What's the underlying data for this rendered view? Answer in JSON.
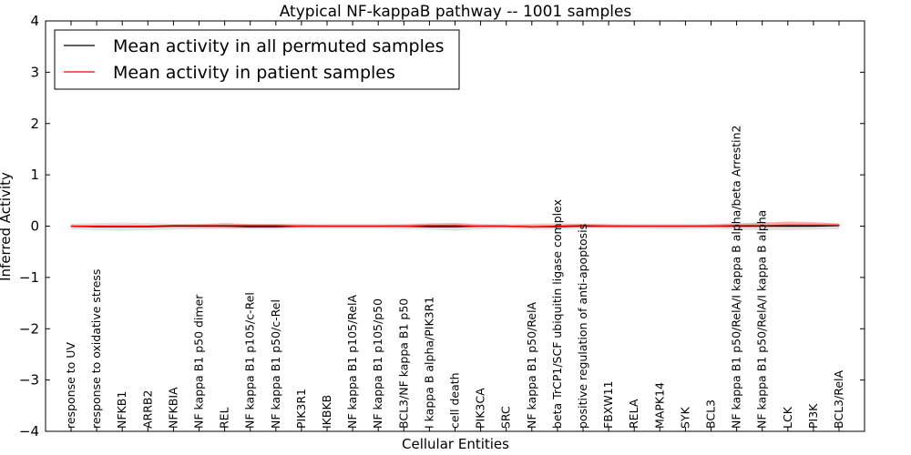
{
  "chart_data": {
    "type": "line",
    "title": "Atypical NF-kappaB pathway -- 1001 samples",
    "xlabel": "Cellular Entities",
    "ylabel": "Inferred Activity",
    "ylim": [
      -4,
      4
    ],
    "yticks": [
      4,
      3,
      2,
      1,
      0,
      -1,
      -2,
      -3,
      -4
    ],
    "ytick_labels": [
      "4",
      "3",
      "2",
      "1",
      "0",
      "−1",
      "−2",
      "−3",
      "−4"
    ],
    "grid": false,
    "legend": {
      "placement": "upper-left",
      "entries": [
        {
          "label": "Mean activity in all permuted samples",
          "color": "#000000"
        },
        {
          "label": "Mean activity in patient samples",
          "color": "#ff0000"
        }
      ]
    },
    "categories": [
      "response to UV",
      "response to oxidative stress",
      "NFKB1",
      "ARRB2",
      "NFKBIA",
      "NF kappa B1 p50 dimer",
      "REL",
      "NF kappa B1 p105/c-Rel",
      "NF kappa B1 p50/c-Rel",
      "PIK3R1",
      "IKBKB",
      "NF kappa B1 p105/RelA",
      "NF kappa B1 p105/p50",
      "BCL3/NF kappa B1 p50",
      "I kappa B alpha/PIK3R1",
      "cell death",
      "PIK3CA",
      "SRC",
      "NF kappa B1 p50/RelA",
      "beta TrCP1/SCF ubiquitin ligase complex",
      "positive regulation of anti-apoptosis",
      "FBXW11",
      "RELA",
      "MAPK14",
      "SYK",
      "BCL3",
      "NF kappa B1 p50/RelA/I kappa B alpha/beta Arrestin2",
      "NF kappa B1 p50/RelA/I kappa B alpha",
      "LCK",
      "PI3K",
      "BCL3/RelA"
    ],
    "series": [
      {
        "name": "Mean activity in all permuted samples",
        "color": "#000000",
        "values": [
          0,
          -0.01,
          -0.01,
          -0.01,
          0,
          0,
          0,
          -0.01,
          -0.01,
          0,
          0,
          0,
          0,
          0,
          -0.01,
          -0.01,
          0,
          0,
          -0.01,
          -0.01,
          0,
          0,
          0,
          0,
          0,
          0,
          0,
          0,
          0,
          0,
          0.01
        ],
        "band": {
          "color": "#c8c8c8",
          "lower": [
            -0.06,
            -0.08,
            -0.09,
            -0.08,
            -0.07,
            -0.06,
            -0.05,
            -0.06,
            -0.06,
            -0.05,
            -0.05,
            -0.05,
            -0.05,
            -0.06,
            -0.07,
            -0.09,
            -0.06,
            -0.05,
            -0.06,
            -0.07,
            -0.05,
            -0.05,
            -0.05,
            -0.06,
            -0.06,
            -0.05,
            -0.07,
            -0.08,
            -0.08,
            -0.07,
            -0.06
          ],
          "upper": [
            0.05,
            0.06,
            0.07,
            0.06,
            0.05,
            0.05,
            0.05,
            0.05,
            0.05,
            0.05,
            0.05,
            0.05,
            0.05,
            0.05,
            0.06,
            0.06,
            0.05,
            0.05,
            0.05,
            0.06,
            0.05,
            0.05,
            0.05,
            0.05,
            0.05,
            0.05,
            0.06,
            0.06,
            0.07,
            0.06,
            0.06
          ]
        }
      },
      {
        "name": "Mean activity in patient samples",
        "color": "#ff0000",
        "values": [
          0,
          0,
          0,
          0,
          0.01,
          0.01,
          0.01,
          0.01,
          0.01,
          0,
          0,
          0,
          0,
          0,
          0.01,
          0.01,
          0,
          0,
          -0.01,
          0,
          0.01,
          0,
          0,
          0,
          0,
          0,
          0.01,
          0.01,
          0.02,
          0.02,
          0.02
        ],
        "band": {
          "color": "#ff8080",
          "lower": [
            -0.02,
            -0.02,
            -0.02,
            -0.02,
            -0.02,
            -0.03,
            -0.04,
            -0.03,
            -0.03,
            -0.02,
            -0.02,
            -0.02,
            -0.02,
            -0.02,
            -0.03,
            -0.03,
            -0.02,
            -0.02,
            -0.04,
            -0.02,
            -0.03,
            -0.02,
            -0.02,
            -0.02,
            -0.02,
            -0.02,
            -0.03,
            -0.02,
            -0.02,
            -0.01,
            -0.01
          ],
          "upper": [
            0.02,
            0.02,
            0.02,
            0.02,
            0.03,
            0.04,
            0.06,
            0.04,
            0.04,
            0.03,
            0.02,
            0.02,
            0.02,
            0.03,
            0.05,
            0.06,
            0.03,
            0.02,
            0.03,
            0.03,
            0.05,
            0.03,
            0.02,
            0.02,
            0.02,
            0.03,
            0.05,
            0.07,
            0.09,
            0.08,
            0.05
          ]
        }
      }
    ]
  }
}
